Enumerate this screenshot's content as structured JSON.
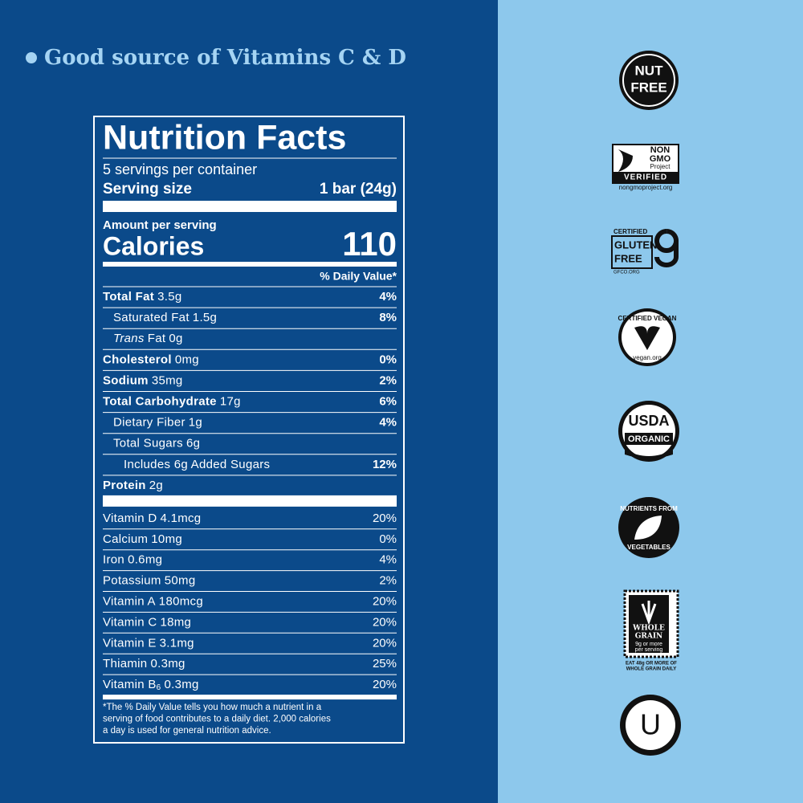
{
  "headline": "Good source of Vitamins C & D",
  "label": {
    "title": "Nutrition Facts",
    "servings": "5 servings per container",
    "serving_size_label": "Serving size",
    "serving_size": "1 bar (24g)",
    "amount_per_serving": "Amount per serving",
    "calories_label": "Calories",
    "calories": 110,
    "daily_value_header": "% Daily Value*",
    "nutrients": [
      {
        "name": "Total Fat",
        "amount": "3.5g",
        "dv": "4%",
        "bold": true,
        "indent": 0
      },
      {
        "name": "Saturated Fat",
        "amount": "1.5g",
        "dv": "8%",
        "bold": false,
        "indent": 1
      },
      {
        "name_italic": "Trans",
        "name": "Fat",
        "amount": "0g",
        "bold": false,
        "indent": 1
      },
      {
        "name": "Cholesterol",
        "amount": "0mg",
        "dv": "0%",
        "bold": true,
        "indent": 0
      },
      {
        "name": "Sodium",
        "amount": "35mg",
        "dv": "2%",
        "bold": true,
        "indent": 0
      },
      {
        "name": "Total Carbohydrate",
        "amount": "17g",
        "dv": "6%",
        "bold": true,
        "indent": 0
      },
      {
        "name": "Dietary Fiber",
        "amount": "1g",
        "dv": "4%",
        "bold": false,
        "indent": 1
      },
      {
        "name": "Total Sugars",
        "amount": "6g",
        "bold": false,
        "indent": 1
      },
      {
        "name": "Includes 6g Added Sugars",
        "dv": "12%",
        "bold": false,
        "indent": 2
      },
      {
        "name": "Protein",
        "amount": "2g",
        "bold": true,
        "indent": 0
      }
    ],
    "vitamins": [
      {
        "name": "Vitamin D",
        "amount": "4.1mcg",
        "dv": "20%"
      },
      {
        "name": "Calcium",
        "amount": "10mg",
        "dv": "0%"
      },
      {
        "name": "Iron",
        "amount": "0.6mg",
        "dv": "4%"
      },
      {
        "name": "Potassium",
        "amount": "50mg",
        "dv": "2%"
      },
      {
        "name": "Vitamin A",
        "amount": "180mcg",
        "dv": "20%"
      },
      {
        "name": "Vitamin C",
        "amount": "18mg",
        "dv": "20%"
      },
      {
        "name": "Vitamin E",
        "amount": "3.1mg",
        "dv": "20%"
      },
      {
        "name": "Thiamin",
        "amount": "0.3mg",
        "dv": "25%"
      },
      {
        "name": "Vitamin B",
        "subscript": "6",
        "amount": "0.3mg",
        "dv": "20%"
      }
    ],
    "footnote": [
      "*The % Daily Value tells you how much a nutrient in a",
      "serving of food contributes to a daily diet. 2,000 calories",
      "a day is used for general nutrition advice."
    ]
  },
  "badges": {
    "nut_free": [
      "NUT",
      "FREE"
    ],
    "non_gmo": [
      "NON",
      "GMO",
      "Project",
      "VERIFIED",
      "nongmoproject.org"
    ],
    "gluten_free": [
      "CERTIFIED",
      "GLUTEN",
      "FREE",
      "GFCO.ORG"
    ],
    "vegan": [
      "CERTIFIED VEGAN",
      "vegan.org"
    ],
    "usda": [
      "USDA",
      "ORGANIC"
    ],
    "vegetables": [
      "NUTRIENTS FROM",
      "VEGETABLES"
    ],
    "whole_grain": [
      "WHOLE",
      "GRAIN",
      "9g or more",
      "per serving",
      "EAT 48g OR MORE OF",
      "WHOLE GRAIN DAILY"
    ],
    "kosher": "U"
  }
}
